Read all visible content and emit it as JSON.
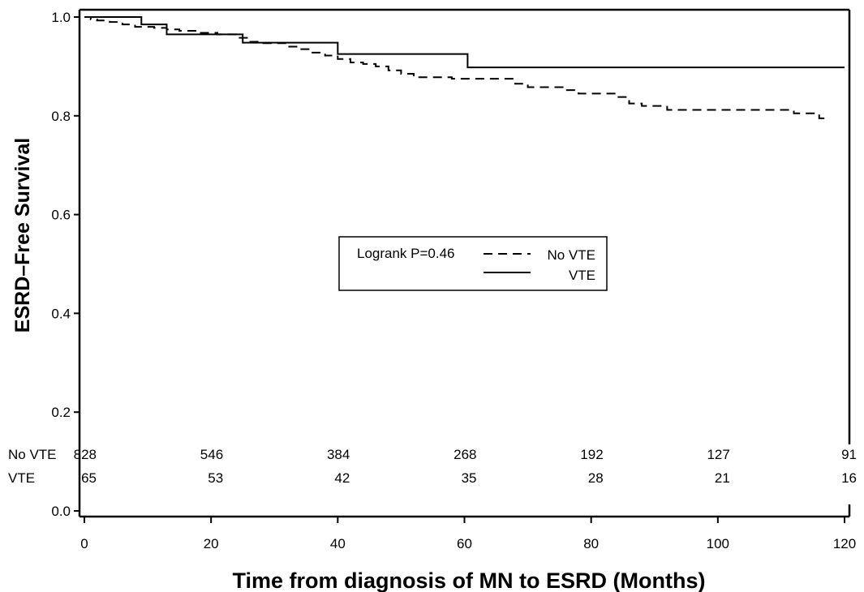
{
  "chart_data": {
    "type": "line",
    "subtype": "kaplan-meier",
    "title": "",
    "xlabel": "Time from diagnosis of MN to ESRD (Months)",
    "ylabel": "ESRD–Free Survival",
    "xlim": [
      0,
      120
    ],
    "ylim": [
      0.0,
      1.0
    ],
    "x_ticks": [
      0,
      20,
      40,
      60,
      80,
      100,
      120
    ],
    "y_ticks": [
      "0.0",
      "0.2",
      "0.4",
      "0.6",
      "0.8",
      "1.0"
    ],
    "grid": false,
    "series": [
      {
        "name": "No VTE",
        "style": "dashed",
        "step_points": [
          [
            0,
            1.0
          ],
          [
            1,
            0.995
          ],
          [
            2,
            0.993
          ],
          [
            4,
            0.99
          ],
          [
            6,
            0.985
          ],
          [
            8,
            0.98
          ],
          [
            11,
            0.978
          ],
          [
            13,
            0.975
          ],
          [
            15,
            0.972
          ],
          [
            18,
            0.968
          ],
          [
            21,
            0.965
          ],
          [
            24,
            0.958
          ],
          [
            26,
            0.95
          ],
          [
            28,
            0.947
          ],
          [
            32,
            0.94
          ],
          [
            34,
            0.935
          ],
          [
            36,
            0.928
          ],
          [
            38,
            0.922
          ],
          [
            40,
            0.915
          ],
          [
            42,
            0.908
          ],
          [
            44,
            0.905
          ],
          [
            46,
            0.9
          ],
          [
            48,
            0.892
          ],
          [
            50,
            0.885
          ],
          [
            52,
            0.878
          ],
          [
            58,
            0.875
          ],
          [
            68,
            0.865
          ],
          [
            70,
            0.858
          ],
          [
            76,
            0.852
          ],
          [
            78,
            0.845
          ],
          [
            84,
            0.838
          ],
          [
            86,
            0.825
          ],
          [
            88,
            0.82
          ],
          [
            92,
            0.812
          ],
          [
            112,
            0.805
          ],
          [
            116,
            0.795
          ],
          [
            117,
            0.795
          ]
        ]
      },
      {
        "name": "VTE",
        "style": "solid",
        "step_points": [
          [
            0,
            1.0
          ],
          [
            9,
            0.985
          ],
          [
            13,
            0.965
          ],
          [
            25,
            0.948
          ],
          [
            40,
            0.925
          ],
          [
            60.5,
            0.898
          ],
          [
            120,
            0.898
          ]
        ]
      }
    ],
    "legend": {
      "position": "center",
      "annotation": "Logrank P=0.46",
      "entries": [
        "No VTE",
        "VTE"
      ]
    },
    "risk_table": {
      "times": [
        0,
        20,
        40,
        60,
        80,
        100,
        120
      ],
      "rows": [
        {
          "label": "No VTE",
          "counts": [
            "828",
            "546",
            "384",
            "268",
            "192",
            "127",
            "91"
          ]
        },
        {
          "label": "VTE",
          "counts": [
            "65",
            "53",
            "42",
            "35",
            "28",
            "21",
            "16"
          ]
        }
      ]
    }
  }
}
